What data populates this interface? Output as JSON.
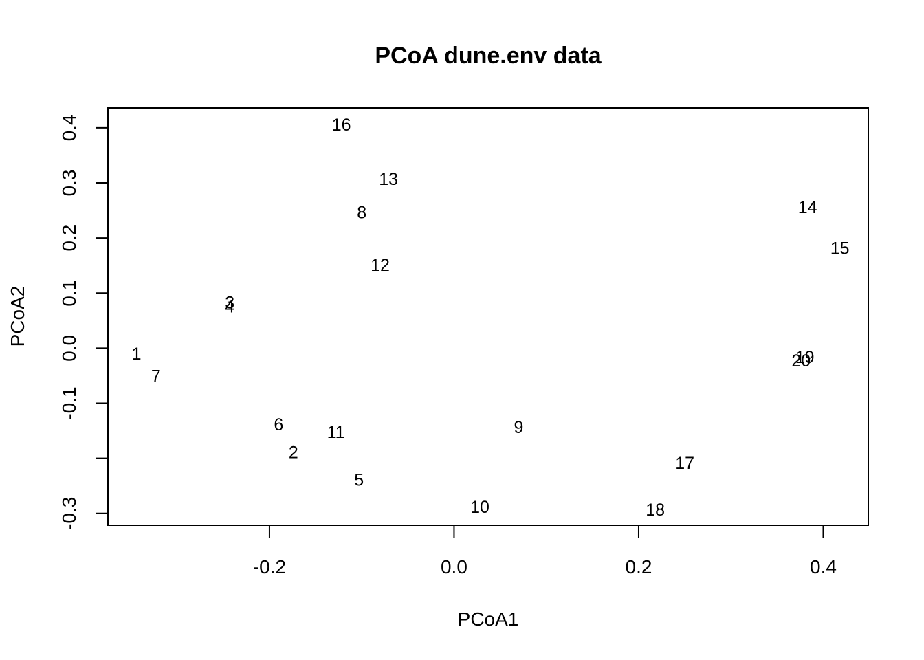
{
  "chart_data": {
    "type": "scatter",
    "title": "PCoA dune.env data",
    "xlabel": "PCoA1",
    "ylabel": "PCoA2",
    "xlim": [
      -0.375,
      0.4488
    ],
    "ylim": [
      -0.3215,
      0.4361
    ],
    "x_ticks": [
      -0.2,
      0.0,
      0.2,
      0.4
    ],
    "x_tick_labels": [
      "-0.2",
      "0.0",
      "0.2",
      "0.4"
    ],
    "y_ticks": [
      -0.3,
      -0.2,
      -0.1,
      0.0,
      0.1,
      0.2,
      0.3,
      0.4
    ],
    "y_tick_labels": [
      "-0.3",
      "",
      "-0.1",
      "0.0",
      "0.1",
      "0.2",
      "0.3",
      "0.4"
    ],
    "grid": false,
    "legend": "none",
    "marker": "text labels",
    "points": [
      {
        "label": "1",
        "x": -0.344,
        "y": -0.011
      },
      {
        "label": "2",
        "x": -0.174,
        "y": -0.19
      },
      {
        "label": "3",
        "x": -0.243,
        "y": 0.082
      },
      {
        "label": "4",
        "x": -0.243,
        "y": 0.075
      },
      {
        "label": "5",
        "x": -0.103,
        "y": -0.24
      },
      {
        "label": "6",
        "x": -0.19,
        "y": -0.139
      },
      {
        "label": "7",
        "x": -0.323,
        "y": -0.051
      },
      {
        "label": "8",
        "x": -0.1,
        "y": 0.246
      },
      {
        "label": "9",
        "x": 0.07,
        "y": -0.144
      },
      {
        "label": "10",
        "x": 0.028,
        "y": -0.289
      },
      {
        "label": "11",
        "x": -0.128,
        "y": -0.153
      },
      {
        "label": "12",
        "x": -0.08,
        "y": 0.15
      },
      {
        "label": "13",
        "x": -0.071,
        "y": 0.306
      },
      {
        "label": "14",
        "x": 0.383,
        "y": 0.255
      },
      {
        "label": "15",
        "x": 0.418,
        "y": 0.181
      },
      {
        "label": "16",
        "x": -0.122,
        "y": 0.405
      },
      {
        "label": "17",
        "x": 0.25,
        "y": -0.209
      },
      {
        "label": "18",
        "x": 0.218,
        "y": -0.294
      },
      {
        "label": "19",
        "x": 0.38,
        "y": -0.017
      },
      {
        "label": "20",
        "x": 0.376,
        "y": -0.023
      }
    ],
    "colors": {
      "background": "#ffffff",
      "foreground": "#000000"
    }
  }
}
